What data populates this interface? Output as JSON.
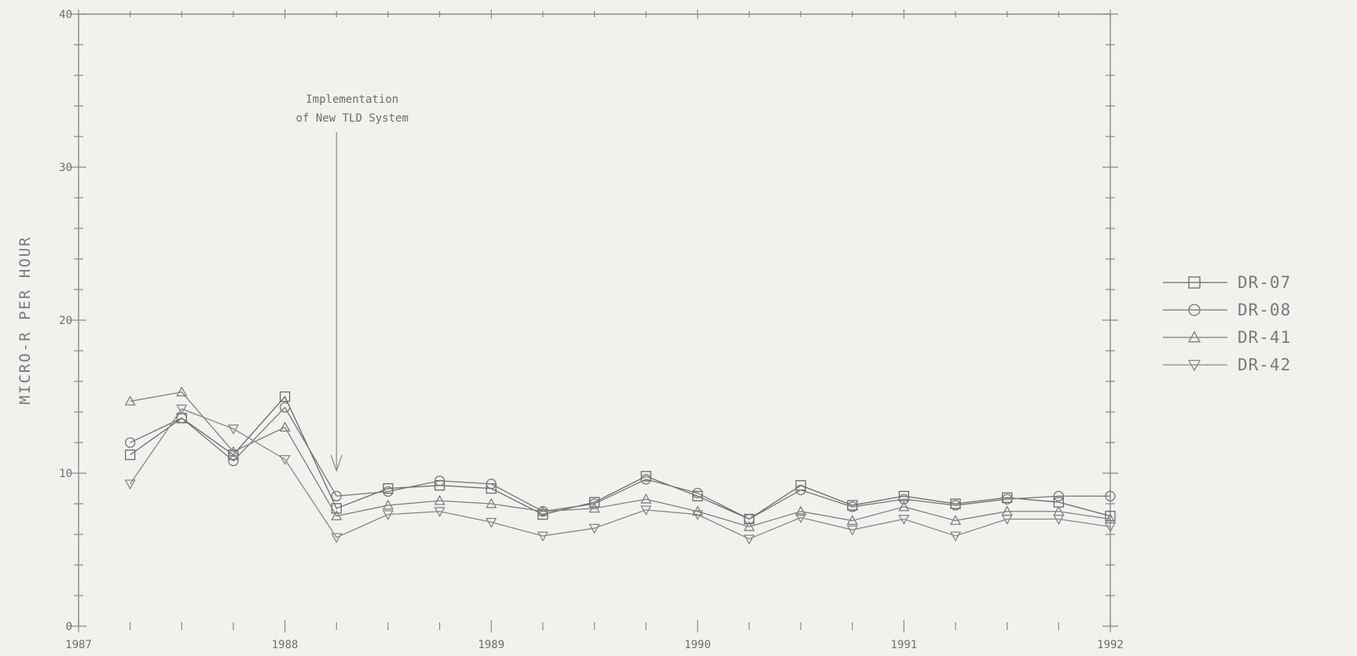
{
  "chart_data": {
    "type": "line",
    "title": "",
    "xlabel": "",
    "ylabel": "MICRO-R PER HOUR",
    "xlim": [
      1987,
      1992
    ],
    "ylim": [
      0,
      40
    ],
    "x_ticks": [
      "1987",
      "1988",
      "1989",
      "1990",
      "1991",
      "1992"
    ],
    "y_ticks": [
      "0",
      "10",
      "20",
      "30",
      "40"
    ],
    "grid": false,
    "legend_position": "right",
    "x": [
      1987.25,
      1987.5,
      1987.75,
      1988.0,
      1988.25,
      1988.5,
      1988.75,
      1989.0,
      1989.25,
      1989.5,
      1989.75,
      1990.0,
      1990.25,
      1990.5,
      1990.75,
      1991.0,
      1991.25,
      1991.5,
      1991.75,
      1992.0
    ],
    "series": [
      {
        "name": "DR-07",
        "marker": "square",
        "values": [
          11.2,
          13.6,
          11.2,
          15.0,
          7.7,
          9.0,
          9.2,
          9.0,
          7.3,
          8.1,
          9.8,
          8.5,
          7.0,
          9.2,
          7.9,
          8.5,
          8.0,
          8.4,
          8.1,
          7.2
        ]
      },
      {
        "name": "DR-08",
        "marker": "circle",
        "values": [
          12.0,
          13.6,
          10.8,
          14.3,
          8.5,
          8.8,
          9.5,
          9.3,
          7.5,
          8.0,
          9.6,
          8.7,
          7.0,
          8.9,
          7.8,
          8.3,
          7.9,
          8.3,
          8.5,
          8.5
        ]
      },
      {
        "name": "DR-41",
        "marker": "triangle-up",
        "values": [
          14.7,
          15.3,
          11.4,
          13.0,
          7.2,
          7.9,
          8.2,
          8.0,
          7.5,
          7.7,
          8.3,
          7.5,
          6.5,
          7.5,
          6.9,
          7.8,
          6.9,
          7.5,
          7.5,
          7.0
        ]
      },
      {
        "name": "DR-42",
        "marker": "triangle-down",
        "values": [
          9.3,
          14.2,
          12.9,
          10.9,
          5.8,
          7.3,
          7.5,
          6.8,
          5.9,
          6.4,
          7.6,
          7.3,
          5.7,
          7.1,
          6.3,
          7.0,
          5.9,
          7.0,
          7.0,
          6.5
        ]
      }
    ],
    "annotation": {
      "line1": "Implementation",
      "line2": "of New TLD System",
      "arrow_x": 1988.25
    },
    "colors": {
      "axis": "#8a8a8a",
      "series": [
        "#6a6a6a",
        "#767676",
        "#7f7f7f",
        "#888888"
      ]
    }
  }
}
